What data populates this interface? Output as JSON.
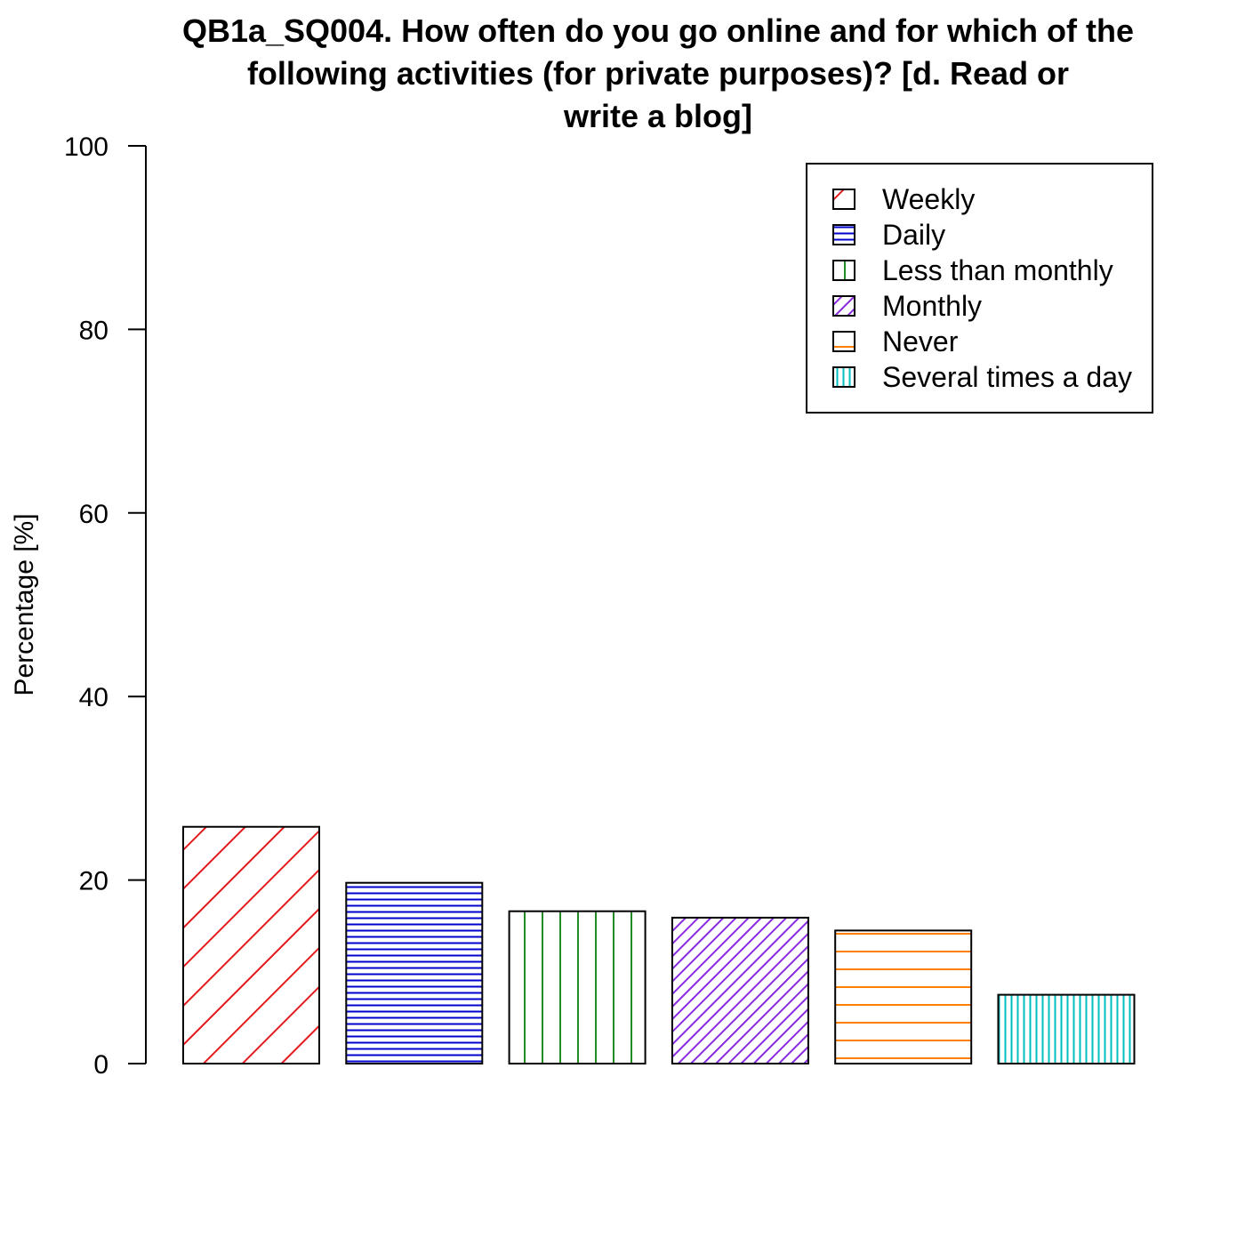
{
  "chart_data": {
    "type": "bar",
    "title_lines": [
      "QB1a_SQ004. How often do you go online and for which of the",
      "following activities (for private purposes)? [d. Read or",
      "write a blog]"
    ],
    "xlabel": "",
    "ylabel": "Percentage [%]",
    "ylim": [
      0,
      100
    ],
    "yticks": [
      "0",
      "20",
      "40",
      "60",
      "80",
      "100"
    ],
    "grid": false,
    "legend_position": "top-right",
    "categories": [
      "Weekly",
      "Daily",
      "Less than monthly",
      "Monthly",
      "Never",
      "Several times a day"
    ],
    "values": [
      25.8,
      19.7,
      16.6,
      15.9,
      14.5,
      7.5
    ],
    "series": [
      {
        "name": "Weekly",
        "value": 25.8,
        "color": "#e41a1c",
        "pattern": "diagonal-45"
      },
      {
        "name": "Daily",
        "value": 19.7,
        "color": "#0000cc",
        "pattern": "horizontal-dense"
      },
      {
        "name": "Less than monthly",
        "value": 16.6,
        "color": "#228b22",
        "pattern": "vertical"
      },
      {
        "name": "Monthly",
        "value": 15.9,
        "color": "#8a2be2",
        "pattern": "diagonal-45-dense"
      },
      {
        "name": "Never",
        "value": 14.5,
        "color": "#ff7f00",
        "pattern": "horizontal"
      },
      {
        "name": "Several times a day",
        "value": 7.5,
        "color": "#00bfbf",
        "pattern": "vertical-dense"
      }
    ]
  }
}
